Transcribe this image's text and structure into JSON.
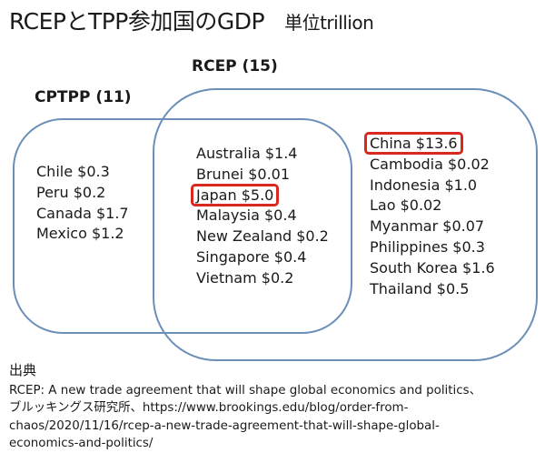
{
  "title": {
    "main": "RCEPとTPP参加国のGDP",
    "unit": "単位trillion"
  },
  "rcep": {
    "label": "RCEP (15)"
  },
  "cptpp": {
    "label": "CPTPP (11)"
  },
  "cptpp_only": [
    "Chile $0.3",
    "Peru $0.2",
    "Canada $1.7",
    "Mexico $1.2"
  ],
  "both": [
    "Australia $1.4",
    "Brunei $0.01",
    "Japan $5.0",
    "Malaysia $0.4",
    "New Zealand $0.2",
    "Singapore $0.4",
    "Vietnam $0.2"
  ],
  "rcep_only": [
    "China $13.6",
    "Cambodia $0.02",
    "Indonesia $1.0",
    "Lao $0.02",
    "Myanmar $0.07",
    "Philippines $0.3",
    "South Korea $1.6",
    "Thailand $0.5"
  ],
  "highlighted": [
    "Japan $5.0",
    "China $13.6"
  ],
  "highlight_color": "#d8281f",
  "box_color": "#6b8fb8",
  "source": {
    "title": "出典",
    "lines": [
      "RCEP: A new trade agreement that will shape global economics and politics、",
      "ブルッキングス研究所、https://www.brookings.edu/blog/order-from-",
      "chaos/2020/11/16/rcep-a-new-trade-agreement-that-will-shape-global-",
      "economics-and-politics/"
    ]
  }
}
